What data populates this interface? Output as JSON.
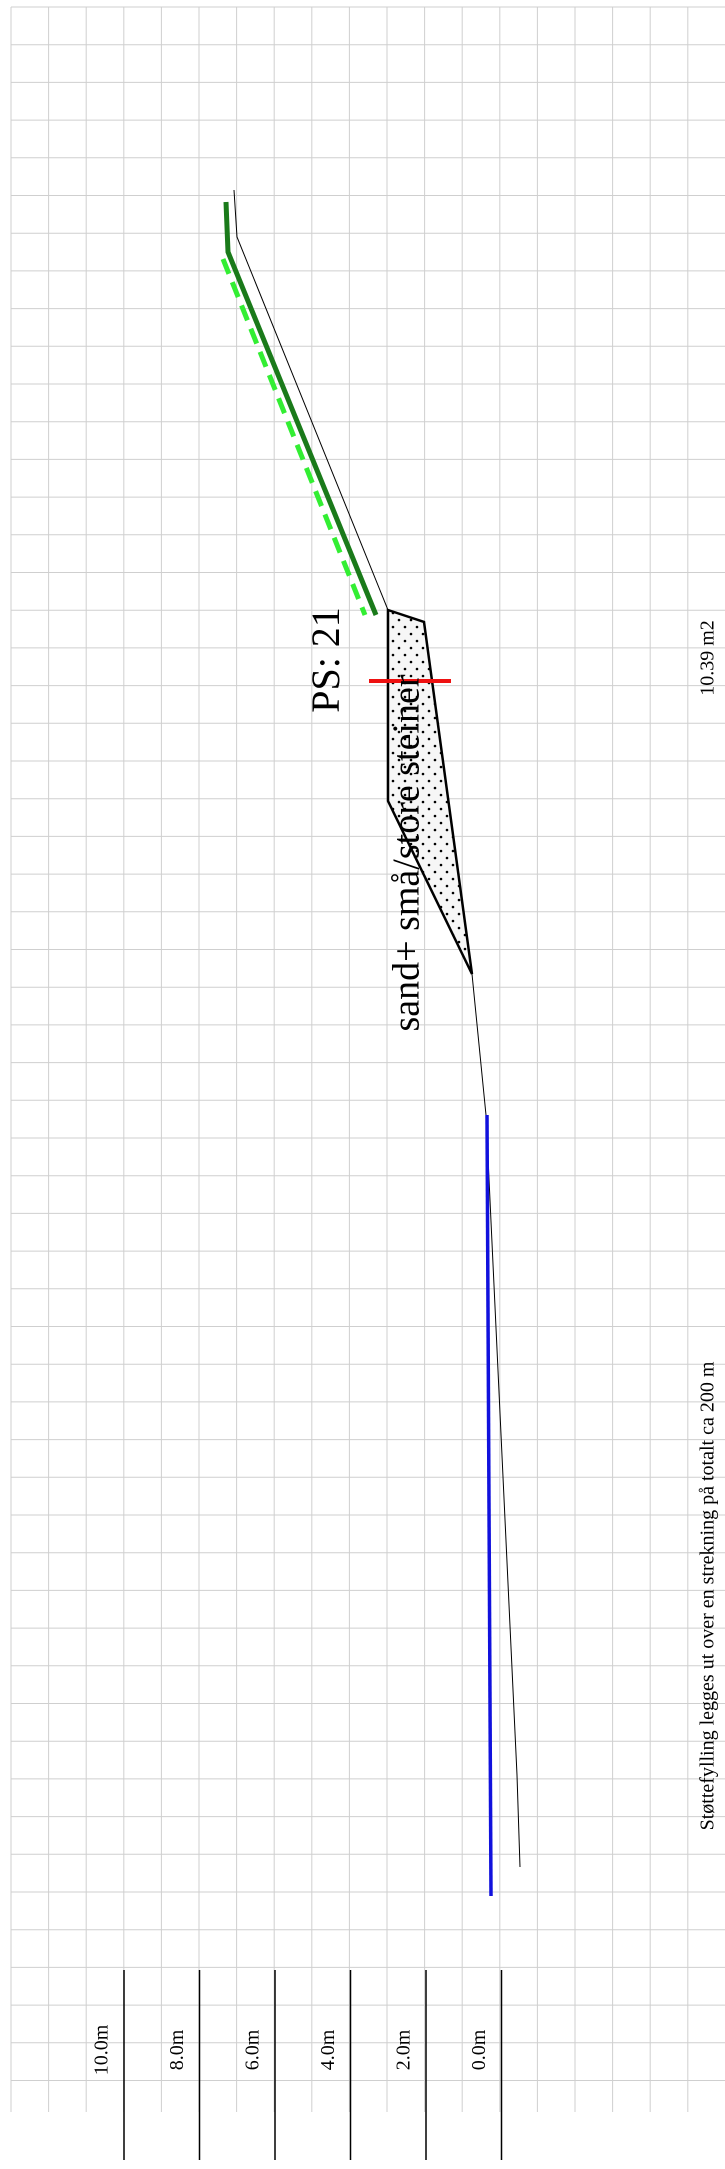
{
  "scale": {
    "labels": [
      "10.0m",
      "8.0m",
      "6.0m",
      "4.0m",
      "2.0m",
      "0.0m"
    ]
  },
  "profile": {
    "label": "PS: 21",
    "material": "sand+ små/store steiner",
    "area": "10.39 m2"
  },
  "note": "Støttefylling legges ut over en strekning på totalt ca 200 m"
}
